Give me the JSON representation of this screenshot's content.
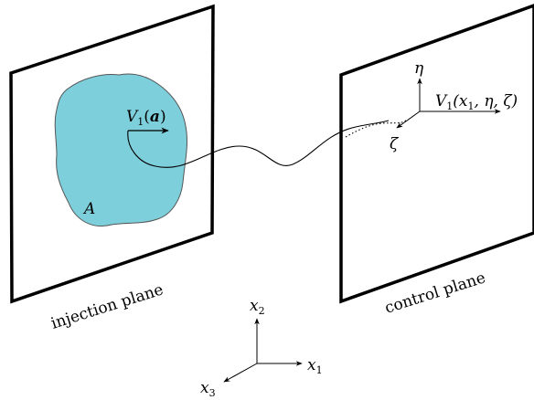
{
  "injection_plane": {
    "label": "injection plane",
    "area_label": "A",
    "area_fill": "#7ecfdc",
    "velocity_label": {
      "var": "V",
      "sub": "1",
      "open": "(",
      "arg": "a",
      "close": ")"
    }
  },
  "control_plane": {
    "label": "control plane",
    "axis_eta": "η",
    "axis_zeta": "ζ",
    "velocity_label": {
      "var": "V",
      "sub": "1",
      "args": "(x",
      "args_sub": "1",
      "rest": ", η, ζ)"
    }
  },
  "axes": {
    "x1": {
      "var": "x",
      "sub": "1"
    },
    "x2": {
      "var": "x",
      "sub": "2"
    },
    "x3": {
      "var": "x",
      "sub": "3"
    }
  }
}
